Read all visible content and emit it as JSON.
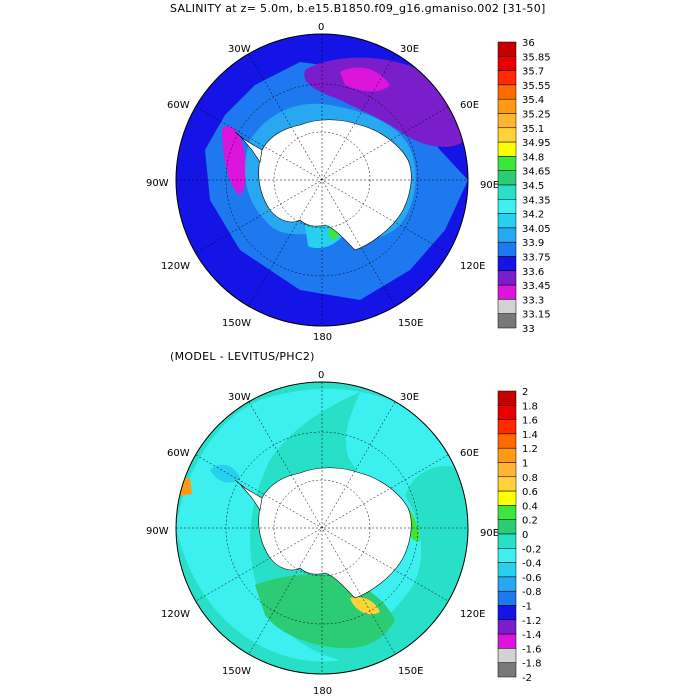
{
  "figure": {
    "title": "SALINITY at z=    5.0m, b.e15.B1850.f09_g16.gmaniso.002 [31-50]",
    "subtitle": "(MODEL - LEVITUS/PHC2)"
  },
  "map_labels": {
    "top": "0",
    "w30": "30W",
    "e30": "30E",
    "w60": "60W",
    "e60": "60E",
    "w90": "90W",
    "e90": "90E",
    "w120": "120W",
    "e120": "120E",
    "w150": "150W",
    "e150": "150E",
    "bottom": "180"
  },
  "colors": {
    "land": "#ffffff",
    "ocean_fill_top": "#1c55e8",
    "ocean_fill_bottom": "#35d6e6"
  },
  "legend_top": {
    "labels": [
      "36",
      "35.85",
      "35.7",
      "35.55",
      "35.4",
      "35.25",
      "35.1",
      "34.95",
      "34.8",
      "34.65",
      "34.5",
      "34.35",
      "34.2",
      "34.05",
      "33.9",
      "33.75",
      "33.6",
      "33.45",
      "33.3",
      "33.15",
      "33"
    ],
    "colors": [
      "#c40000",
      "#e80000",
      "#ff2a00",
      "#ff6a00",
      "#ff9a14",
      "#ffb432",
      "#ffd23a",
      "#ffff00",
      "#3ce63c",
      "#2ccc74",
      "#28e0c8",
      "#3cf0f0",
      "#28d0f0",
      "#28a8f0",
      "#1e78f0",
      "#1414e6",
      "#7a1ecc",
      "#dc14dc",
      "#d2d2d2",
      "#787878"
    ]
  },
  "legend_bottom": {
    "labels": [
      "2",
      "1.8",
      "1.6",
      "1.4",
      "1.2",
      "1",
      "0.8",
      "0.6",
      "0.4",
      "0.2",
      "0",
      "-0.2",
      "-0.4",
      "-0.6",
      "-0.8",
      "-1",
      "-1.2",
      "-1.4",
      "-1.6",
      "-1.8",
      "-2"
    ],
    "colors": [
      "#c40000",
      "#e80000",
      "#ff2a00",
      "#ff6a00",
      "#ff9a14",
      "#ffb432",
      "#ffd23a",
      "#ffff00",
      "#3ce63c",
      "#2ccc74",
      "#28e0c8",
      "#3cf0f0",
      "#28d0f0",
      "#28a8f0",
      "#1e78f0",
      "#1414e6",
      "#7a1ecc",
      "#dc14dc",
      "#d2d2d2",
      "#787878"
    ]
  }
}
